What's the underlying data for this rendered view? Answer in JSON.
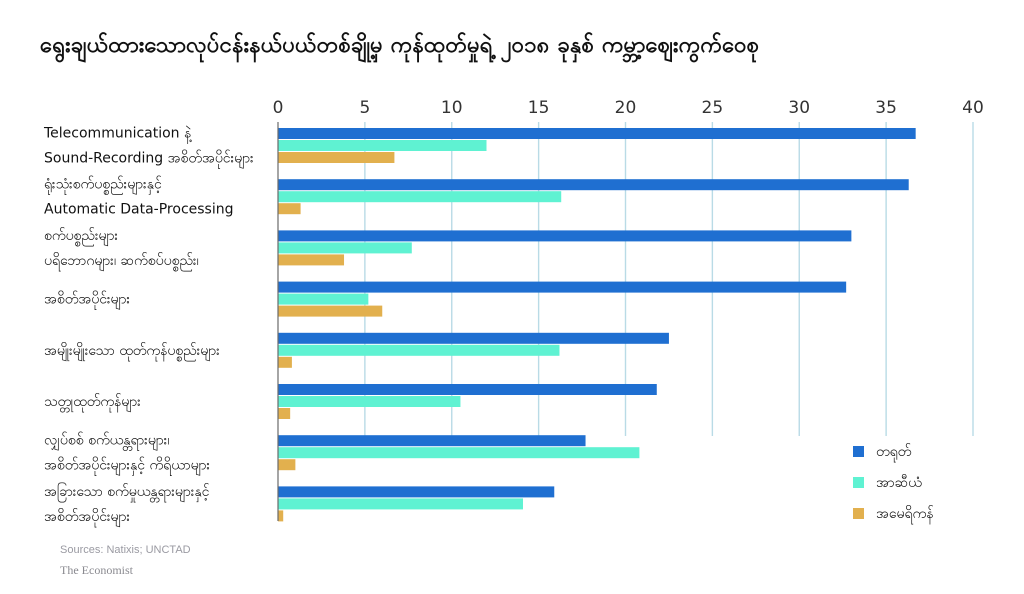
{
  "chart_data": {
    "type": "bar",
    "orientation": "horizontal",
    "title": "ရွေးချယ်ထားသောလုပ်ငန်းနယ်ပယ်တစ်ချို့မှ ကုန်ထုတ်မှုရဲ့ ၂၀၁၈ ခုနှစ် ကမ္ဘာ့ဈေးကွက်ဝေစု",
    "categories": [
      [
        "Telecommunication နဲ့",
        "Sound-Recording အစိတ်အပိုင်းများ"
      ],
      [
        "ရုံးသုံးစက်ပစ္စည်းများနှင့်",
        "Automatic Data-Processing"
      ],
      [
        "စက်ပစ္စည်းများ",
        "ပရိဘောဂများ၊ ဆက်စပ်ပစ္စည်း၊"
      ],
      [
        "အစိတ်အပိုင်းများ"
      ],
      [
        "အမျိုးမျိုးသော ထုတ်ကုန်ပစ္စည်းများ"
      ],
      [
        "သတ္တုထုတ်ကုန်များ"
      ],
      [
        "လျှပ်စစ် စက်ယန္တရားများ၊",
        "အစိတ်အပိုင်းများနှင့် ကိရိယာများ"
      ],
      [
        "အခြားသော စက်မှုယန္တရားများနှင့်",
        "အစိတ်အပိုင်းများ"
      ]
    ],
    "series": [
      {
        "name": "တရုတ်",
        "color": "#1f6fd1",
        "values": [
          36.7,
          36.3,
          33.0,
          32.7,
          22.5,
          21.8,
          17.7,
          15.9
        ]
      },
      {
        "name": "အာဆီယံ",
        "color": "#5ff2d2",
        "values": [
          12.0,
          16.3,
          7.7,
          5.2,
          16.2,
          10.5,
          20.8,
          14.1
        ]
      },
      {
        "name": "အမေရိကန်",
        "color": "#e2b04e",
        "values": [
          6.7,
          1.3,
          3.8,
          6.0,
          0.8,
          0.7,
          1.0,
          0.3
        ]
      }
    ],
    "xticks": [
      0,
      5,
      10,
      15,
      20,
      25,
      30,
      35,
      40
    ],
    "xlim": [
      0,
      40
    ],
    "grid": true,
    "legend_position": "bottom-right",
    "xaxis_position": "top"
  },
  "footer": {
    "source": "Sources: Natixis; UNCTAD",
    "brand": "The Economist"
  },
  "colors": {
    "grid": "#b9dbe6",
    "axis": "#6a6a6a"
  }
}
